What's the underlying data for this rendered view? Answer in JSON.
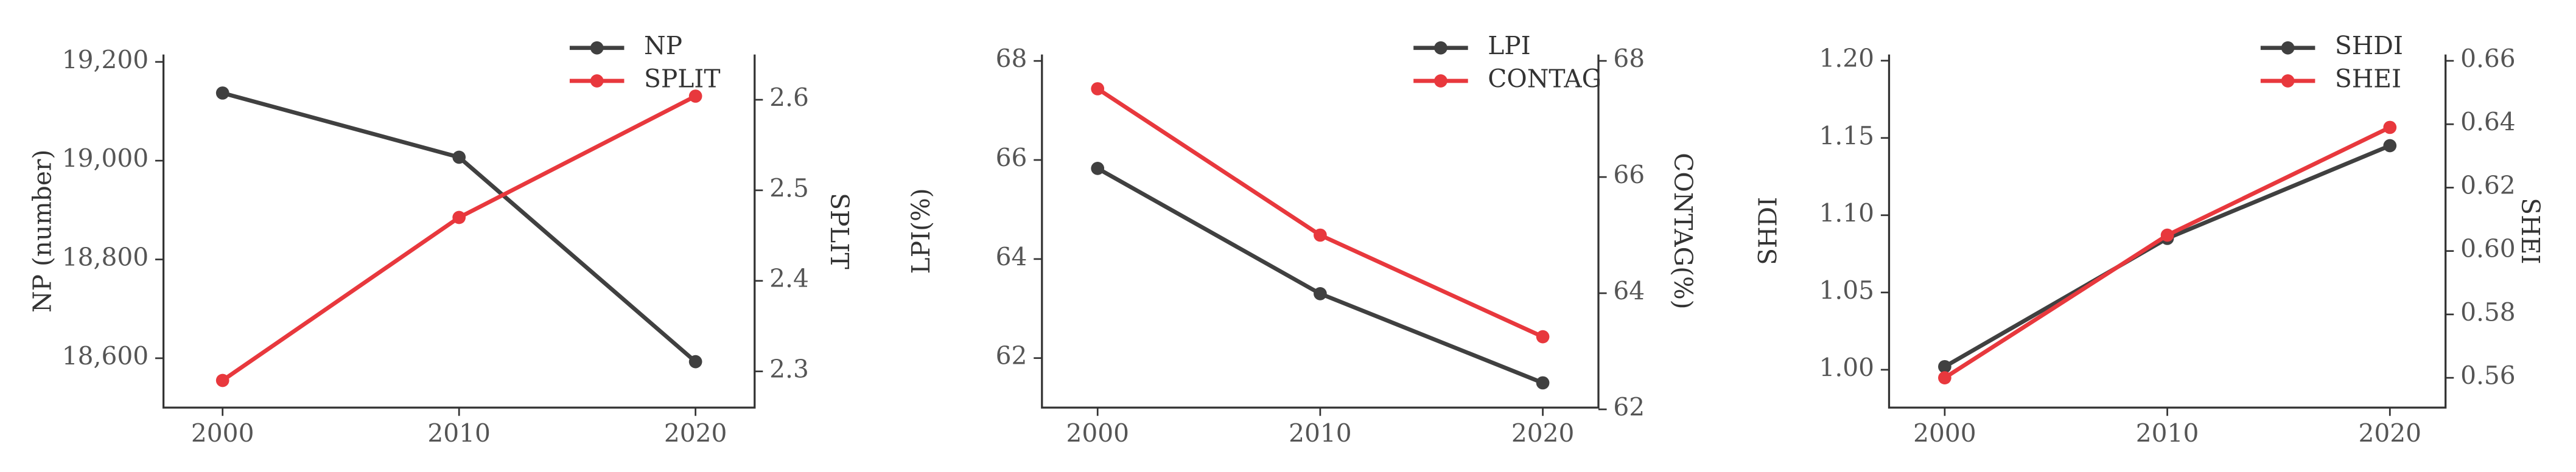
{
  "chart_data": [
    {
      "type": "line",
      "categories": [
        "2000",
        "2010",
        "2020"
      ],
      "y_label": "NP (number)",
      "y2_label": "SPLIT",
      "legend": "upper right",
      "ylim": [
        18500,
        19215
      ],
      "yticks": [
        {
          "value": 18600,
          "label": "18,600"
        },
        {
          "value": 18800,
          "label": "18,800"
        },
        {
          "value": 19000,
          "label": "19,000"
        },
        {
          "value": 19200,
          "label": "19,200"
        }
      ],
      "y2lim": [
        2.26,
        2.65
      ],
      "y2ticks": [
        2.3,
        2.4,
        2.5,
        2.6
      ],
      "series": [
        {
          "name": "NP",
          "color": "#404040",
          "values": [
            19137,
            19007,
            18593
          ]
        },
        {
          "name": "SPLIT",
          "color": "#e8383d",
          "axis": "y2",
          "values": [
            2.29,
            2.47,
            2.604
          ]
        }
      ]
    },
    {
      "type": "line",
      "categories": [
        "2000",
        "2010",
        "2020"
      ],
      "y_label": "LPI(%)",
      "y2_label": "CONTAG(%)",
      "legend": "upper right",
      "ylim": [
        61,
        68.13
      ],
      "yticks": [
        62,
        64,
        66,
        68
      ],
      "y2lim": [
        62.03,
        68.11
      ],
      "y2ticks": [
        62,
        64,
        66,
        68
      ],
      "series": [
        {
          "name": "LPI",
          "color": "#404040",
          "values": [
            65.83,
            63.3,
            61.5
          ]
        },
        {
          "name": "CONTAG",
          "color": "#e8383d",
          "axis": "y2",
          "values": [
            67.52,
            65.0,
            63.25
          ]
        }
      ]
    },
    {
      "type": "line",
      "categories": [
        "2000",
        "2010",
        "2020"
      ],
      "y_label": "SHDI",
      "y2_label": "SHEI",
      "legend": "upper right",
      "ylim": [
        0.9755,
        1.204
      ],
      "yticks": [
        {
          "value": 1.0,
          "label": "1.00"
        },
        {
          "value": 1.05,
          "label": "1.05"
        },
        {
          "value": 1.1,
          "label": "1.10"
        },
        {
          "value": 1.15,
          "label": "1.15"
        },
        {
          "value": 1.2,
          "label": "1.20"
        }
      ],
      "y2lim": [
        0.5506,
        0.662
      ],
      "y2ticks": [
        {
          "value": 0.56,
          "label": "0.56"
        },
        {
          "value": 0.58,
          "label": "0.58"
        },
        {
          "value": 0.6,
          "label": "0.60"
        },
        {
          "value": 0.62,
          "label": "0.62"
        },
        {
          "value": 0.64,
          "label": "0.64"
        },
        {
          "value": 0.66,
          "label": "0.66"
        }
      ],
      "series": [
        {
          "name": "SHDI",
          "color": "#404040",
          "values": [
            1.002,
            1.085,
            1.145
          ]
        },
        {
          "name": "SHEI",
          "color": "#e8383d",
          "axis": "y2",
          "values": [
            0.56,
            0.605,
            0.639
          ]
        }
      ]
    }
  ]
}
